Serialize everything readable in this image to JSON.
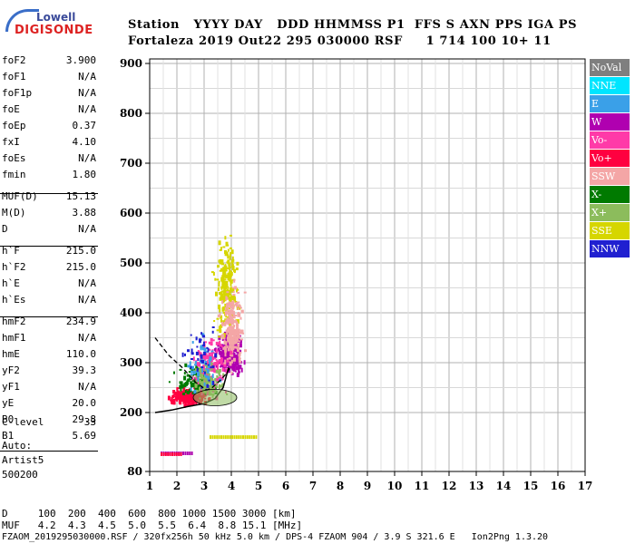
{
  "logo": {
    "line1": "Lowell",
    "line2": "DIGISONDE"
  },
  "header": {
    "line1": "Station   YYYY DAY   DDD HHMMSS P1  FFS S AXN PPS IGA PS",
    "line2": "Fortaleza 2019 Out22 295 030000 RSF     1 714 100 10+ 11"
  },
  "params": [
    {
      "k": "foF2",
      "v": "3.900"
    },
    {
      "k": "foF1",
      "v": "N/A"
    },
    {
      "k": "foF1p",
      "v": "N/A"
    },
    {
      "k": "foE",
      "v": "N/A"
    },
    {
      "k": "foEp",
      "v": "0.37"
    },
    {
      "k": "fxI",
      "v": "4.10"
    },
    {
      "k": "foEs",
      "v": "N/A"
    },
    {
      "k": "fmin",
      "v": "1.80"
    },
    {
      "k": "MUF(D)",
      "v": "15.13"
    },
    {
      "k": "M(D)",
      "v": "3.88"
    },
    {
      "k": "D",
      "v": "N/A"
    },
    {
      "k": "h`F",
      "v": "215.0"
    },
    {
      "k": "h`F2",
      "v": "215.0"
    },
    {
      "k": "h`E",
      "v": "N/A"
    },
    {
      "k": "h`Es",
      "v": "N/A"
    },
    {
      "k": "hmF2",
      "v": "234.9"
    },
    {
      "k": "hmF1",
      "v": "N/A"
    },
    {
      "k": "hmE",
      "v": "110.0"
    },
    {
      "k": "yF2",
      "v": "39.3"
    },
    {
      "k": "yF1",
      "v": "N/A"
    },
    {
      "k": "yE",
      "v": "20.0"
    },
    {
      "k": "B0",
      "v": "29.8"
    },
    {
      "k": "B1",
      "v": "5.69"
    },
    {
      "k": "C-level",
      "v": "33"
    }
  ],
  "auto": {
    "line1": "Auto:",
    "line2": "Artist5",
    "line3": "500200"
  },
  "legend": [
    {
      "label": "NoVal",
      "color": "#7f7f7f"
    },
    {
      "label": "NNE",
      "color": "#00e5ff"
    },
    {
      "label": "E",
      "color": "#3aa0e8"
    },
    {
      "label": "W",
      "color": "#b000b0"
    },
    {
      "label": "Vo-",
      "color": "#ff3aa8"
    },
    {
      "label": "Vo+",
      "color": "#ff0040"
    },
    {
      "label": "SSW",
      "color": "#f4a6a6"
    },
    {
      "label": "X-",
      "color": "#007a00"
    },
    {
      "label": "X+",
      "color": "#8cbc5c"
    },
    {
      "label": "SSE",
      "color": "#d6d600"
    },
    {
      "label": "NNW",
      "color": "#2020d0"
    }
  ],
  "bottom": {
    "line1": "D     100  200  400  600  800 1000 1500 3000 [km]",
    "line2": "MUF   4.2  4.3  4.5  5.0  5.5  6.4  8.8 15.1 [MHz]",
    "line3": "FZAOM_2019295030000.RSF / 320fx256h 50 kHz 5.0 km / DPS-4 FZAOM 904 / 3.9 S 321.6 E   Ion2Png 1.3.20"
  },
  "chart_data": {
    "type": "scatter",
    "x_ticks": [
      "1",
      "2",
      "3",
      "4",
      "5",
      "6",
      "7",
      "8",
      "9",
      "10",
      "11",
      "12",
      "13",
      "14",
      "15",
      "16",
      "17"
    ],
    "y_ticks": [
      "80",
      "200",
      "300",
      "400",
      "500",
      "600",
      "700",
      "800",
      "900"
    ],
    "xlim": [
      1,
      17
    ],
    "ylim": [
      80,
      900
    ],
    "grid": true,
    "trace_lower": {
      "x": [
        1.2,
        1.8,
        2.4,
        3.0,
        3.4,
        3.7,
        3.9
      ],
      "y": [
        200,
        205,
        212,
        218,
        228,
        250,
        290
      ]
    },
    "trace_dashed": {
      "x": [
        1.2,
        1.7,
        2.2,
        2.7,
        3.1,
        3.3,
        3.6,
        3.85,
        3.95
      ],
      "y": [
        350,
        315,
        290,
        260,
        245,
        250,
        265,
        280,
        290
      ]
    },
    "series": [
      {
        "color": "#b000b0",
        "cx": 3.9,
        "cy": 320,
        "spread_x": 0.6,
        "spread_y": 55,
        "n": 320
      },
      {
        "color": "#ff0040",
        "cx": 2.4,
        "cy": 235,
        "spread_x": 0.9,
        "spread_y": 22,
        "n": 260
      },
      {
        "color": "#d6d600",
        "cx": 3.8,
        "cy": 450,
        "spread_x": 0.6,
        "spread_y": 130,
        "n": 230
      },
      {
        "color": "#f4a6a6",
        "cx": 4.0,
        "cy": 370,
        "spread_x": 0.55,
        "spread_y": 110,
        "n": 220
      },
      {
        "color": "#007a00",
        "cx": 2.6,
        "cy": 270,
        "spread_x": 1.0,
        "spread_y": 45,
        "n": 110
      },
      {
        "color": "#ff3aa8",
        "cx": 3.2,
        "cy": 300,
        "spread_x": 0.9,
        "spread_y": 80,
        "n": 140
      },
      {
        "color": "#8cbc5c",
        "cx": 3.1,
        "cy": 265,
        "spread_x": 0.8,
        "spread_y": 45,
        "n": 110
      },
      {
        "color": "#3aa0e8",
        "cx": 2.9,
        "cy": 300,
        "spread_x": 0.9,
        "spread_y": 80,
        "n": 45
      },
      {
        "color": "#2020d0",
        "cx": 2.8,
        "cy": 320,
        "spread_x": 0.9,
        "spread_y": 90,
        "n": 40
      }
    ],
    "strips": [
      {
        "color": "#d6d600",
        "x1": 3.2,
        "x2": 4.9,
        "y": 150
      },
      {
        "color": "#b000b0",
        "x1": 1.4,
        "x2": 2.6,
        "y": 117
      },
      {
        "color": "#ff0040",
        "x1": 1.4,
        "x2": 2.2,
        "y": 115
      }
    ]
  }
}
